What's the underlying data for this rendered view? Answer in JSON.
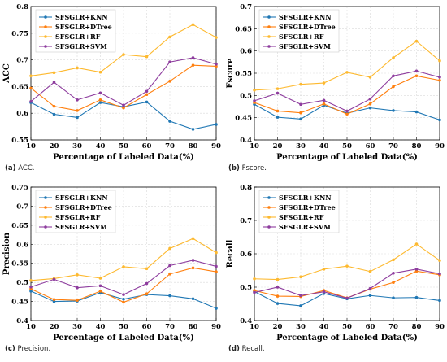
{
  "panels": [
    {
      "caption_letter": "(a)",
      "caption_text": "ACC.",
      "chart_data": {
        "type": "line",
        "ylabel": "ACC",
        "xlabel": "Percentage of Labeled Data(%)",
        "x": [
          10,
          20,
          30,
          40,
          50,
          60,
          70,
          80,
          90
        ],
        "xlim": [
          10,
          90
        ],
        "ylim": [
          0.55,
          0.8
        ],
        "yticks": [
          0.55,
          0.6,
          0.65,
          0.7,
          0.75,
          0.8
        ],
        "ytick_labels": [
          "0.55",
          "0.6",
          "0.65",
          "0.7",
          "0.75",
          "0.8"
        ],
        "legend_position": "top-left",
        "series": [
          {
            "name": "SFSGLR+KNN",
            "color": "#1f77b4",
            "values": [
              0.62,
              0.598,
              0.592,
              0.62,
              0.612,
              0.621,
              0.585,
              0.57,
              0.579
            ]
          },
          {
            "name": "SFSGLR+DTree",
            "color": "#ff7f0e",
            "values": [
              0.647,
              0.613,
              0.605,
              0.625,
              0.61,
              0.635,
              0.66,
              0.69,
              0.688
            ]
          },
          {
            "name": "SFSGLR+RF",
            "color": "#fdb92f",
            "values": [
              0.67,
              0.676,
              0.685,
              0.677,
              0.71,
              0.706,
              0.743,
              0.766,
              0.742
            ]
          },
          {
            "name": "SFSGLR+SVM",
            "color": "#8e3d9e",
            "values": [
              0.622,
              0.658,
              0.625,
              0.638,
              0.615,
              0.641,
              0.696,
              0.704,
              0.692
            ]
          }
        ]
      }
    },
    {
      "caption_letter": "(b)",
      "caption_text": "Fscore.",
      "chart_data": {
        "type": "line",
        "ylabel": "Fscore",
        "xlabel": "Percentage of Labeled Data(%)",
        "x": [
          10,
          20,
          30,
          40,
          50,
          60,
          70,
          80,
          90
        ],
        "xlim": [
          10,
          90
        ],
        "ylim": [
          0.4,
          0.7
        ],
        "yticks": [
          0.4,
          0.45,
          0.5,
          0.55,
          0.6,
          0.65,
          0.7
        ],
        "ytick_labels": [
          "0.4",
          "0.45",
          "0.5",
          "0.55",
          "0.6",
          "0.65",
          "0.7"
        ],
        "legend_position": "top-left",
        "series": [
          {
            "name": "SFSGLR+KNN",
            "color": "#1f77b4",
            "values": [
              0.48,
              0.451,
              0.447,
              0.478,
              0.46,
              0.472,
              0.466,
              0.463,
              0.445
            ]
          },
          {
            "name": "SFSGLR+DTree",
            "color": "#ff7f0e",
            "values": [
              0.484,
              0.465,
              0.461,
              0.481,
              0.458,
              0.481,
              0.52,
              0.544,
              0.534
            ]
          },
          {
            "name": "SFSGLR+RF",
            "color": "#fdb92f",
            "values": [
              0.512,
              0.515,
              0.525,
              0.528,
              0.552,
              0.541,
              0.585,
              0.622,
              0.578
            ]
          },
          {
            "name": "SFSGLR+SVM",
            "color": "#8e3d9e",
            "values": [
              0.488,
              0.505,
              0.48,
              0.489,
              0.465,
              0.492,
              0.544,
              0.555,
              0.541
            ]
          }
        ]
      }
    },
    {
      "caption_letter": "(c)",
      "caption_text": "Precision.",
      "chart_data": {
        "type": "line",
        "ylabel": "Precision",
        "xlabel": "Percentage of Labeled Data(%)",
        "x": [
          10,
          20,
          30,
          40,
          50,
          60,
          70,
          80,
          90
        ],
        "xlim": [
          10,
          90
        ],
        "ylim": [
          0.4,
          0.75
        ],
        "yticks": [
          0.4,
          0.45,
          0.5,
          0.55,
          0.6,
          0.65,
          0.7,
          0.75
        ],
        "ytick_labels": [
          "0.4",
          "0.45",
          "0.5",
          "0.55",
          "0.6",
          "0.65",
          "0.7",
          "0.75"
        ],
        "legend_position": "top-left",
        "series": [
          {
            "name": "SFSGLR+KNN",
            "color": "#1f77b4",
            "values": [
              0.477,
              0.45,
              0.451,
              0.473,
              0.456,
              0.468,
              0.465,
              0.457,
              0.432
            ]
          },
          {
            "name": "SFSGLR+DTree",
            "color": "#ff7f0e",
            "values": [
              0.483,
              0.455,
              0.453,
              0.477,
              0.448,
              0.47,
              0.522,
              0.538,
              0.528
            ]
          },
          {
            "name": "SFSGLR+RF",
            "color": "#fdb92f",
            "values": [
              0.505,
              0.51,
              0.52,
              0.511,
              0.541,
              0.536,
              0.589,
              0.615,
              0.578
            ]
          },
          {
            "name": "SFSGLR+SVM",
            "color": "#8e3d9e",
            "values": [
              0.488,
              0.508,
              0.486,
              0.491,
              0.468,
              0.497,
              0.544,
              0.558,
              0.542
            ]
          }
        ]
      }
    },
    {
      "caption_letter": "(d)",
      "caption_text": "Recall.",
      "chart_data": {
        "type": "line",
        "ylabel": "Recall",
        "xlabel": "Percentage of Labeled Data(%)",
        "x": [
          10,
          20,
          30,
          40,
          50,
          60,
          70,
          80,
          90
        ],
        "xlim": [
          10,
          90
        ],
        "ylim": [
          0.4,
          0.8
        ],
        "yticks": [
          0.4,
          0.5,
          0.6,
          0.7,
          0.8
        ],
        "ytick_labels": [
          "0.4",
          "0.5",
          "0.6",
          "0.7",
          "0.8"
        ],
        "legend_position": "top-left",
        "series": [
          {
            "name": "SFSGLR+KNN",
            "color": "#1f77b4",
            "values": [
              0.487,
              0.451,
              0.444,
              0.481,
              0.465,
              0.475,
              0.468,
              0.469,
              0.46
            ]
          },
          {
            "name": "SFSGLR+DTree",
            "color": "#ff7f0e",
            "values": [
              0.49,
              0.473,
              0.472,
              0.49,
              0.468,
              0.494,
              0.514,
              0.548,
              0.537
            ]
          },
          {
            "name": "SFSGLR+RF",
            "color": "#fdb92f",
            "values": [
              0.525,
              0.523,
              0.531,
              0.554,
              0.563,
              0.547,
              0.582,
              0.629,
              0.58
            ]
          },
          {
            "name": "SFSGLR+SVM",
            "color": "#8e3d9e",
            "values": [
              0.484,
              0.5,
              0.475,
              0.486,
              0.467,
              0.496,
              0.542,
              0.554,
              0.54
            ]
          }
        ]
      }
    }
  ]
}
